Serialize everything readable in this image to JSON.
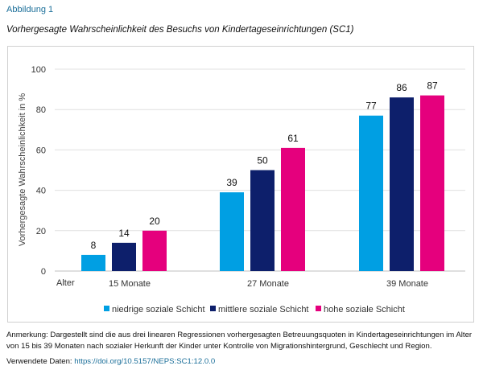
{
  "label": "Abbildung 1",
  "title": "Vorhergesagte Wahrscheinlichkeit des Besuchs von Kindertageseinrichtungen (SC1)",
  "note": "Anmerkung: Dargestellt sind die aus drei linearen Regressionen vorhergesagten Betreuungsquoten in Kindertageseinrichtungen im Alter von 15 bis 39 Monaten nach sozialer Herkunft der Kinder unter Kontrolle von Migrationshintergrund, Geschlecht und Region.",
  "data_label": "Verwendete Daten:",
  "data_link": "https://doi.org/10.5157/NEPS:SC1:12.0.0",
  "chart_data": {
    "type": "bar",
    "title": "",
    "xlabel": "Alter",
    "ylabel": "Vorhergesagte Wahrscheinlichkeit in %",
    "ylim": [
      0,
      100
    ],
    "yticks": [
      0,
      20,
      40,
      60,
      80,
      100
    ],
    "grid": true,
    "legend": "bottom",
    "categories": [
      "15 Monate",
      "27 Monate",
      "39 Monate"
    ],
    "series": [
      {
        "name": "niedrige soziale Schicht",
        "color": "#009fe3",
        "values": [
          8,
          39,
          77
        ]
      },
      {
        "name": "mittlere soziale Schicht",
        "color": "#0d1f6b",
        "values": [
          14,
          50,
          86
        ]
      },
      {
        "name": "hohe soziale Schicht",
        "color": "#e5007d",
        "values": [
          20,
          61,
          87
        ]
      }
    ]
  }
}
